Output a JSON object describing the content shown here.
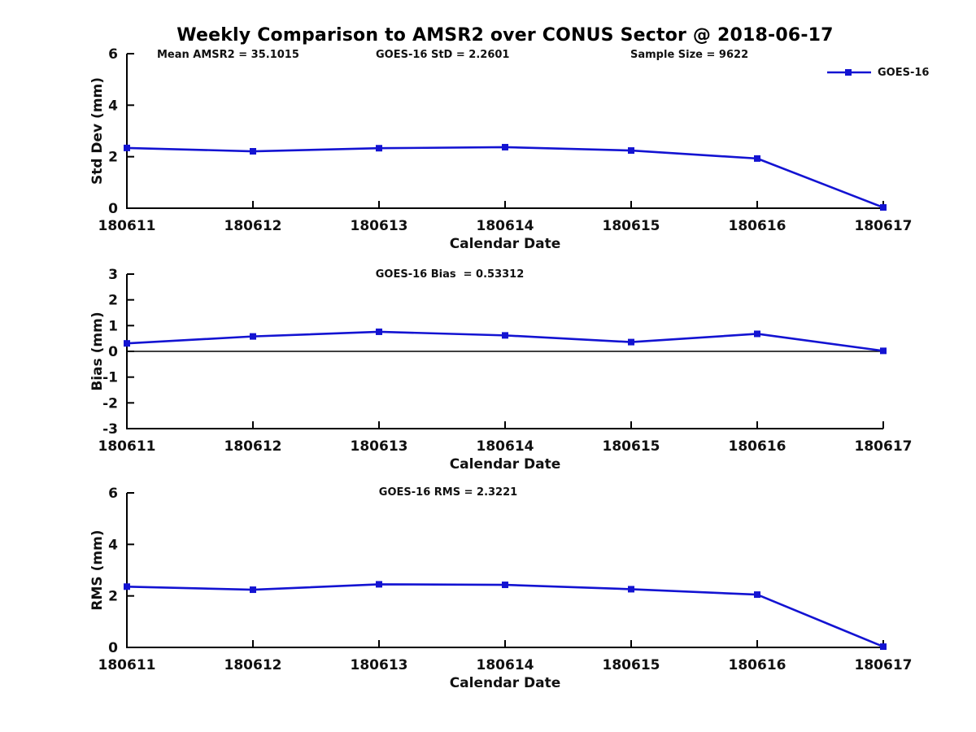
{
  "title": "Weekly Comparison to AMSR2 over CONUS Sector @ 2018-06-17",
  "legend": {
    "label": "GOES-16"
  },
  "colors": {
    "line": "#1313d2",
    "axis": "#000000",
    "text": "#111111",
    "background": "#ffffff"
  },
  "chart_data": [
    {
      "type": "line",
      "header_annotations": [
        "Mean AMSR2 = 35.1015",
        "GOES-16 StD = 2.2601",
        "Sample Size = 9622"
      ],
      "ylabel": "Std Dev (mm)",
      "xlabel": "Calendar Date",
      "categories": [
        "180611",
        "180612",
        "180613",
        "180614",
        "180615",
        "180616",
        "180617"
      ],
      "series": [
        {
          "name": "GOES-16",
          "values": [
            2.34,
            2.21,
            2.33,
            2.37,
            2.24,
            1.93,
            0.03
          ]
        }
      ],
      "ylim": [
        0,
        6
      ],
      "yticks": [
        0,
        2,
        4,
        6
      ],
      "legend_entries": [
        "GOES-16"
      ],
      "legend_position": "top-right",
      "grid": false,
      "zero_line": false
    },
    {
      "type": "line",
      "annotation": "GOES-16 Bias  = 0.53312",
      "ylabel": "Bias (mm)",
      "xlabel": "Calendar Date",
      "categories": [
        "180611",
        "180612",
        "180613",
        "180614",
        "180615",
        "180616",
        "180617"
      ],
      "series": [
        {
          "name": "GOES-16",
          "values": [
            0.31,
            0.58,
            0.76,
            0.62,
            0.36,
            0.68,
            0.02
          ]
        }
      ],
      "ylim": [
        -3,
        3
      ],
      "yticks": [
        -3,
        -2,
        -1,
        0,
        1,
        2,
        3
      ],
      "grid": false,
      "zero_line": true
    },
    {
      "type": "line",
      "annotation": "GOES-16 RMS = 2.3221",
      "ylabel": "RMS (mm)",
      "xlabel": "Calendar Date",
      "categories": [
        "180611",
        "180612",
        "180613",
        "180614",
        "180615",
        "180616",
        "180617"
      ],
      "series": [
        {
          "name": "GOES-16",
          "values": [
            2.36,
            2.24,
            2.45,
            2.43,
            2.26,
            2.05,
            0.03
          ]
        }
      ],
      "grid": false,
      "ylim": [
        0,
        6
      ],
      "yticks": [
        0,
        2,
        4,
        6
      ],
      "zero_line": false
    }
  ]
}
